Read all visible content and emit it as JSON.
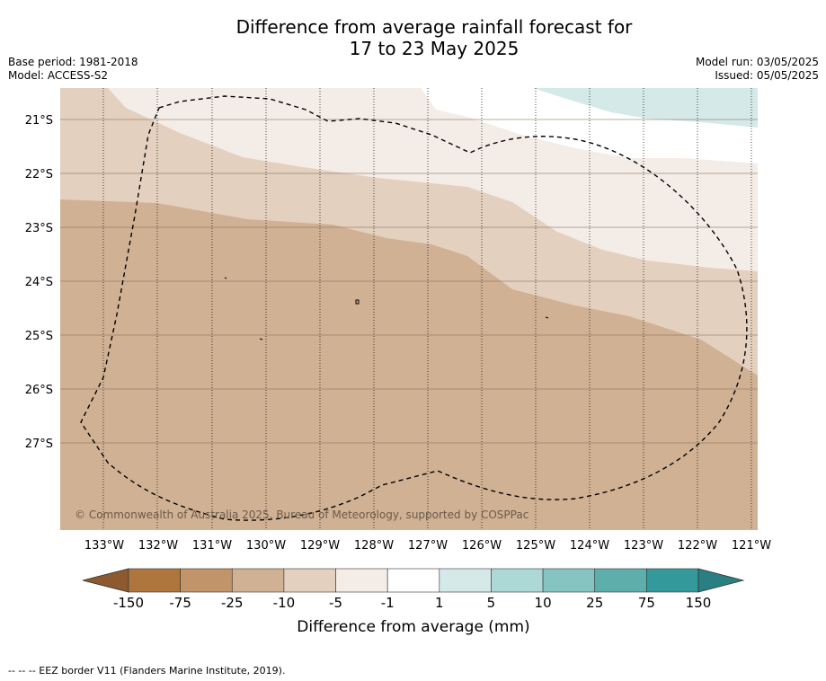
{
  "title": {
    "line1": "Difference from average rainfall forecast for",
    "line2": "17 to 23 May 2025"
  },
  "meta": {
    "base_period": "Base period: 1981-2018",
    "model": "Model: ACCESS-S2",
    "model_run": "Model run: 03/05/2025",
    "issued": "Issued: 05/05/2025"
  },
  "map": {
    "lat_labels": [
      "21°S",
      "22°S",
      "23°S",
      "24°S",
      "25°S",
      "26°S",
      "27°S"
    ],
    "lon_labels": [
      "133°W",
      "132°W",
      "131°W",
      "130°W",
      "129°W",
      "128°W",
      "127°W",
      "126°W",
      "125°W",
      "124°W",
      "123°W",
      "122°W",
      "121°W"
    ],
    "copyright": "© Commonwealth of Australia 2025, Bureau of Meteorology, supported by COSPPac"
  },
  "colorbar": {
    "ticks": [
      "-150",
      "-75",
      "-25",
      "-10",
      "-5",
      "-1",
      "1",
      "5",
      "10",
      "25",
      "75",
      "150"
    ],
    "colors": [
      "#ae763d",
      "#c19469",
      "#d0b194",
      "#e3d0be",
      "#f4ece6",
      "#ffffff",
      "#d4e9e8",
      "#acd8d6",
      "#85c4c1",
      "#5eaeac",
      "#34999b"
    ],
    "low_extend_color": "#8c5a2e",
    "high_extend_color": "#2a7f82",
    "label": "Difference from average (mm)"
  },
  "footnote": "--  --  -- EEZ border V11 (Flanders Marine Institute, 2019)."
}
